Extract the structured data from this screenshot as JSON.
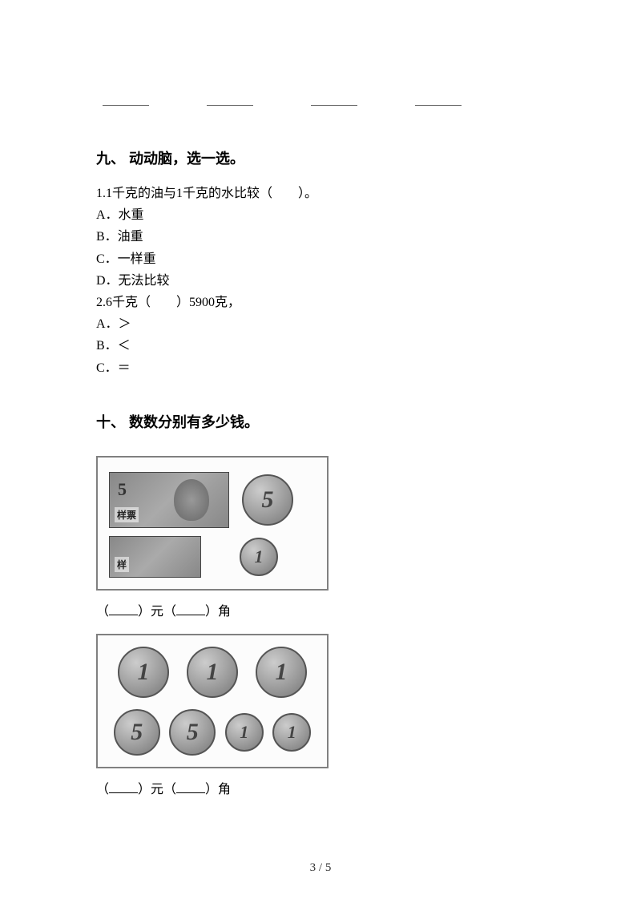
{
  "section9": {
    "title": "九、 动动脑，选一选。",
    "q1": {
      "text": "1.1千克的油与1千克的水比较（　　）。",
      "optA": "A．水重",
      "optB": "B．油重",
      "optC": "C．一样重",
      "optD": "D．无法比较"
    },
    "q2": {
      "text": "2.6千克（　　）5900克，",
      "optA": "A．＞",
      "optB": "B．＜",
      "optC": "C．＝"
    }
  },
  "section10": {
    "title": "十、 数数分别有多少钱。",
    "banknote_label": "样票",
    "banknote5_value": "5",
    "banknote_small_label": "样",
    "coin5_value": "5",
    "coin1_value": "1",
    "answer_prefix": "（",
    "answer_mid1": "）元（",
    "answer_mid2": "）角"
  },
  "page_number": "3 / 5",
  "colors": {
    "text": "#000000",
    "border_gray": "#808080",
    "coin_dark": "#555555",
    "background": "#ffffff"
  }
}
